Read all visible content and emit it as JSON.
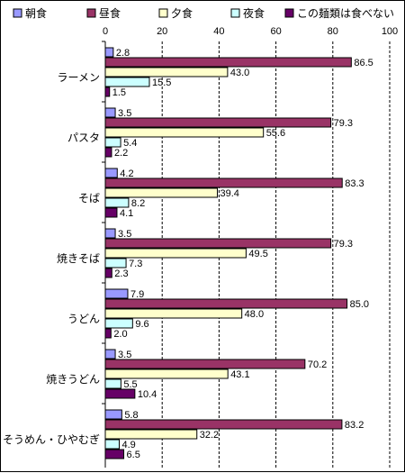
{
  "chart_data": {
    "type": "bar",
    "orientation": "horizontal",
    "categories": [
      "ラーメン",
      "パスタ",
      "そば",
      "焼きそば",
      "うどん",
      "焼きうどん",
      "そうめん・ひやむぎ"
    ],
    "series": [
      {
        "name": "朝食",
        "color": "#9999ff",
        "values": [
          2.8,
          3.5,
          4.2,
          3.5,
          7.9,
          3.5,
          5.8
        ]
      },
      {
        "name": "昼食",
        "color": "#993366",
        "values": [
          86.5,
          79.3,
          83.3,
          79.3,
          85.0,
          70.2,
          83.2
        ]
      },
      {
        "name": "夕食",
        "color": "#ffffcc",
        "values": [
          43.0,
          55.6,
          39.4,
          49.5,
          48.0,
          43.1,
          32.2
        ]
      },
      {
        "name": "夜食",
        "color": "#ccffff",
        "values": [
          15.5,
          5.4,
          8.2,
          7.3,
          9.6,
          5.5,
          4.9
        ]
      },
      {
        "name": "この麺類は食べない",
        "color": "#660066",
        "values": [
          1.5,
          2.2,
          4.1,
          2.3,
          2.0,
          10.4,
          6.5
        ]
      }
    ],
    "xlim": [
      0,
      100
    ],
    "ticks": [
      0,
      20,
      40,
      60,
      80,
      100
    ],
    "grid": "vertical dashed",
    "legend_position": "top",
    "data_labels": true
  }
}
